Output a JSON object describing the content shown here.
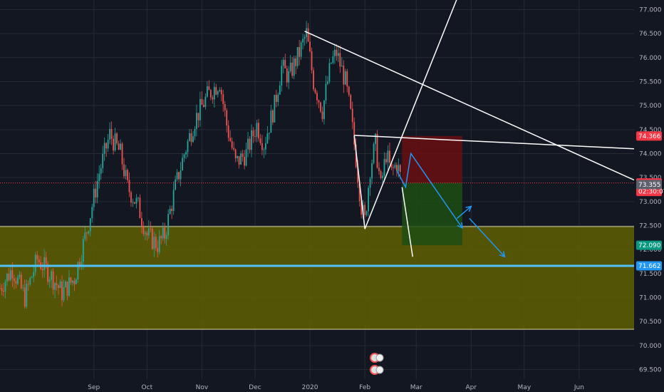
{
  "chart_data": {
    "type": "candlestick",
    "title": "",
    "xlabel": "",
    "ylabel": "",
    "ylim": [
      69.3,
      77.2
    ],
    "y_ticks": [
      "69.500",
      "70.000",
      "70.500",
      "71.000",
      "71.500",
      "72.000",
      "72.500",
      "73.000",
      "73.500",
      "74.000",
      "74.500",
      "75.000",
      "75.500",
      "76.000",
      "76.500",
      "77.000"
    ],
    "x_ticks": [
      "Sep",
      "Oct",
      "Nov",
      "Dec",
      "2020",
      "Feb",
      "Mar",
      "Apr",
      "May",
      "Jun"
    ],
    "x_tick_dates": [
      "2019-09-01",
      "2019-10-01",
      "2019-11-01",
      "2019-12-01",
      "2020-01-01",
      "2020-02-01",
      "2020-03-01",
      "2020-04-01",
      "2020-05-01",
      "2020-06-01"
    ],
    "x_range": [
      "2019-07-10",
      "2020-07-02"
    ],
    "grid": true,
    "colors": {
      "background": "#131722",
      "grid": "#262a33",
      "up": "#26a69a",
      "down": "#ef5350",
      "zone_fill": "#5f5f00",
      "trendline": "#ffffff",
      "horizontal_level": "#4fc3f7",
      "projection_arrow": "#2196f3",
      "stop_zone": "#6b0f12",
      "target_zone": "#1e4d14",
      "axis_text": "#b2b5be"
    },
    "price_series": [
      {
        "date": "2019-07-10",
        "close": 71.2
      },
      {
        "date": "2019-07-17",
        "close": 71.6
      },
      {
        "date": "2019-07-24",
        "close": 71.0
      },
      {
        "date": "2019-07-31",
        "close": 71.8
      },
      {
        "date": "2019-08-07",
        "close": 71.5
      },
      {
        "date": "2019-08-14",
        "close": 71.1
      },
      {
        "date": "2019-08-21",
        "close": 71.4
      },
      {
        "date": "2019-08-28",
        "close": 72.4
      },
      {
        "date": "2019-09-04",
        "close": 73.6
      },
      {
        "date": "2019-09-10",
        "close": 74.4
      },
      {
        "date": "2019-09-16",
        "close": 74.0
      },
      {
        "date": "2019-09-20",
        "close": 73.3
      },
      {
        "date": "2019-09-26",
        "close": 72.9
      },
      {
        "date": "2019-10-01",
        "close": 72.3
      },
      {
        "date": "2019-10-07",
        "close": 72.1
      },
      {
        "date": "2019-10-11",
        "close": 72.3
      },
      {
        "date": "2019-10-17",
        "close": 73.3
      },
      {
        "date": "2019-10-22",
        "close": 74.0
      },
      {
        "date": "2019-10-28",
        "close": 74.7
      },
      {
        "date": "2019-11-04",
        "close": 75.2
      },
      {
        "date": "2019-11-11",
        "close": 75.5
      },
      {
        "date": "2019-11-15",
        "close": 74.6
      },
      {
        "date": "2019-11-20",
        "close": 73.8
      },
      {
        "date": "2019-11-26",
        "close": 74.0
      },
      {
        "date": "2019-12-02",
        "close": 74.6
      },
      {
        "date": "2019-12-06",
        "close": 74.2
      },
      {
        "date": "2019-12-12",
        "close": 75.0
      },
      {
        "date": "2019-12-16",
        "close": 75.8
      },
      {
        "date": "2019-12-20",
        "close": 75.6
      },
      {
        "date": "2019-12-26",
        "close": 76.1
      },
      {
        "date": "2019-12-30",
        "close": 76.5
      },
      {
        "date": "2020-01-03",
        "close": 75.5
      },
      {
        "date": "2020-01-08",
        "close": 74.9
      },
      {
        "date": "2020-01-13",
        "close": 75.9
      },
      {
        "date": "2020-01-16",
        "close": 76.1
      },
      {
        "date": "2020-01-21",
        "close": 75.5
      },
      {
        "date": "2020-01-24",
        "close": 74.8
      },
      {
        "date": "2020-01-27",
        "close": 73.9
      },
      {
        "date": "2020-01-30",
        "close": 72.9
      },
      {
        "date": "2020-02-01",
        "close": 72.6
      },
      {
        "date": "2020-02-04",
        "close": 73.7
      },
      {
        "date": "2020-02-07",
        "close": 74.2
      },
      {
        "date": "2020-02-10",
        "close": 73.3
      },
      {
        "date": "2020-02-13",
        "close": 74.0
      },
      {
        "date": "2020-02-16",
        "close": 73.6
      },
      {
        "date": "2020-02-19",
        "close": 73.8
      },
      {
        "date": "2020-02-22",
        "close": 73.4
      }
    ],
    "zone": {
      "y1": 70.34,
      "y2": 72.48
    },
    "horizontal_level": 71.662,
    "dotted_level": 73.39,
    "position": {
      "x1": "2020-02-22",
      "x2": "2020-03-27",
      "entry": 73.39,
      "stop": 74.366,
      "target": 72.09
    },
    "trendlines": [
      {
        "x1": "2019-12-29",
        "y1": 76.55,
        "x2": "2020-07-02",
        "y2": 73.45
      },
      {
        "x1": "2020-01-26",
        "y1": 74.38,
        "x2": "2020-07-02",
        "y2": 74.1
      },
      {
        "x1": "2020-02-01",
        "y1": 72.43,
        "x2": "2020-03-27",
        "y2": 77.5
      },
      {
        "x1": "2020-01-26",
        "y1": 74.38,
        "x2": "2020-02-01",
        "y2": 72.43
      },
      {
        "x1": "2020-02-22",
        "y1": 73.3,
        "x2": "2020-02-28",
        "y2": 71.85
      }
    ],
    "arrows": [
      {
        "points": [
          [
            "2020-02-19",
            "73.65"
          ],
          [
            "2020-02-24",
            "73.3"
          ],
          [
            "2020-02-27",
            "74.0"
          ],
          [
            "2020-03-27",
            "72.45"
          ]
        ]
      },
      {
        "points": [
          [
            "2020-03-24",
            "72.65"
          ],
          [
            "2020-04-01",
            "72.9"
          ]
        ]
      },
      {
        "points": [
          [
            "2020-03-31",
            "72.65"
          ],
          [
            "2020-04-20",
            "71.85"
          ]
        ]
      }
    ],
    "price_tags": [
      {
        "label": "74.366",
        "value": 74.366,
        "color": "#f23645"
      },
      {
        "label": "73.390",
        "value": 73.39,
        "color": "#f23645"
      },
      {
        "label": "02:30:07",
        "value": 73.2,
        "color": "#f23645"
      },
      {
        "label": "73.355",
        "value": 73.355,
        "color": "#5d606b"
      },
      {
        "label": "72.090",
        "value": 72.09,
        "color": "#089981"
      },
      {
        "label": "71.662",
        "value": 71.662,
        "color": "#2196f3"
      }
    ]
  }
}
